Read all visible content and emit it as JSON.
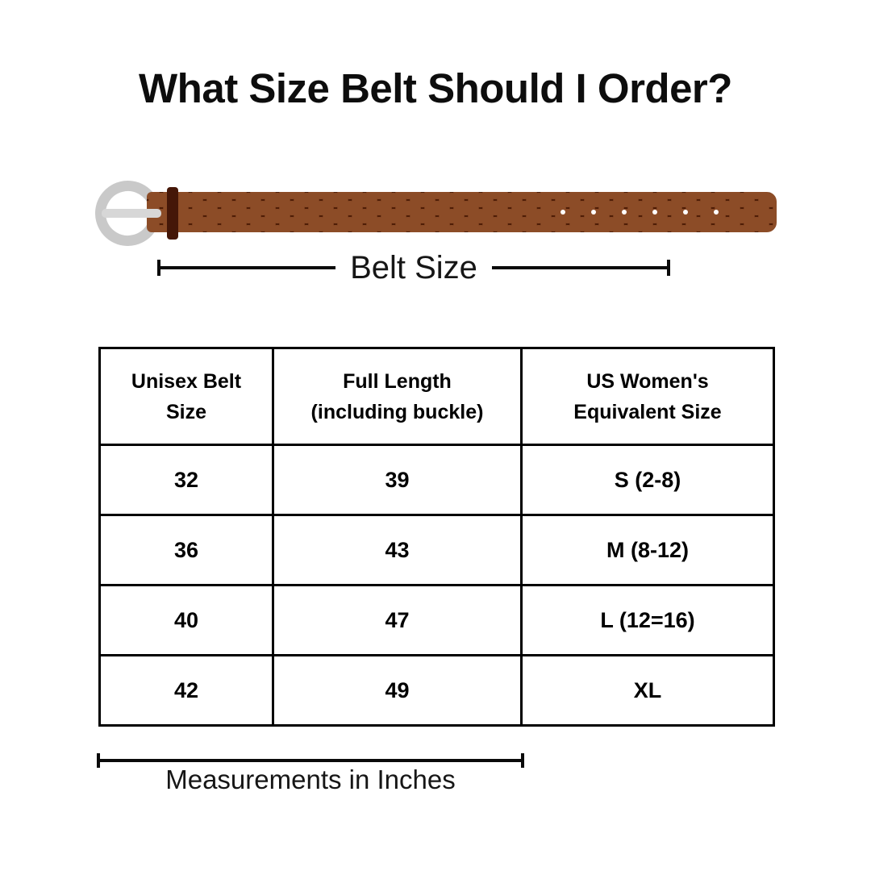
{
  "title": "What Size Belt Should I Order?",
  "belt_diagram": {
    "size_label": "Belt Size",
    "hole_count": 6,
    "colors": {
      "buckle": "#c9c9c9",
      "prong": "#d7d7d7",
      "strap_light": "#8c4c27",
      "strap_dark": "#4f1d06",
      "keeper": "#451708",
      "hole": "#ffffff"
    }
  },
  "table": {
    "headers": [
      {
        "line1": "Unisex Belt",
        "line2": "Size"
      },
      {
        "line1": "Full Length",
        "line2": "(including buckle)"
      },
      {
        "line1": "US Women's",
        "line2": "Equivalent Size"
      }
    ],
    "rows": [
      [
        "32",
        "39",
        "S (2-8)"
      ],
      [
        "36",
        "43",
        "M (8-12)"
      ],
      [
        "40",
        "47",
        "L (12=16)"
      ],
      [
        "42",
        "49",
        "XL"
      ]
    ]
  },
  "footer": {
    "label": "Measurements in Inches"
  }
}
